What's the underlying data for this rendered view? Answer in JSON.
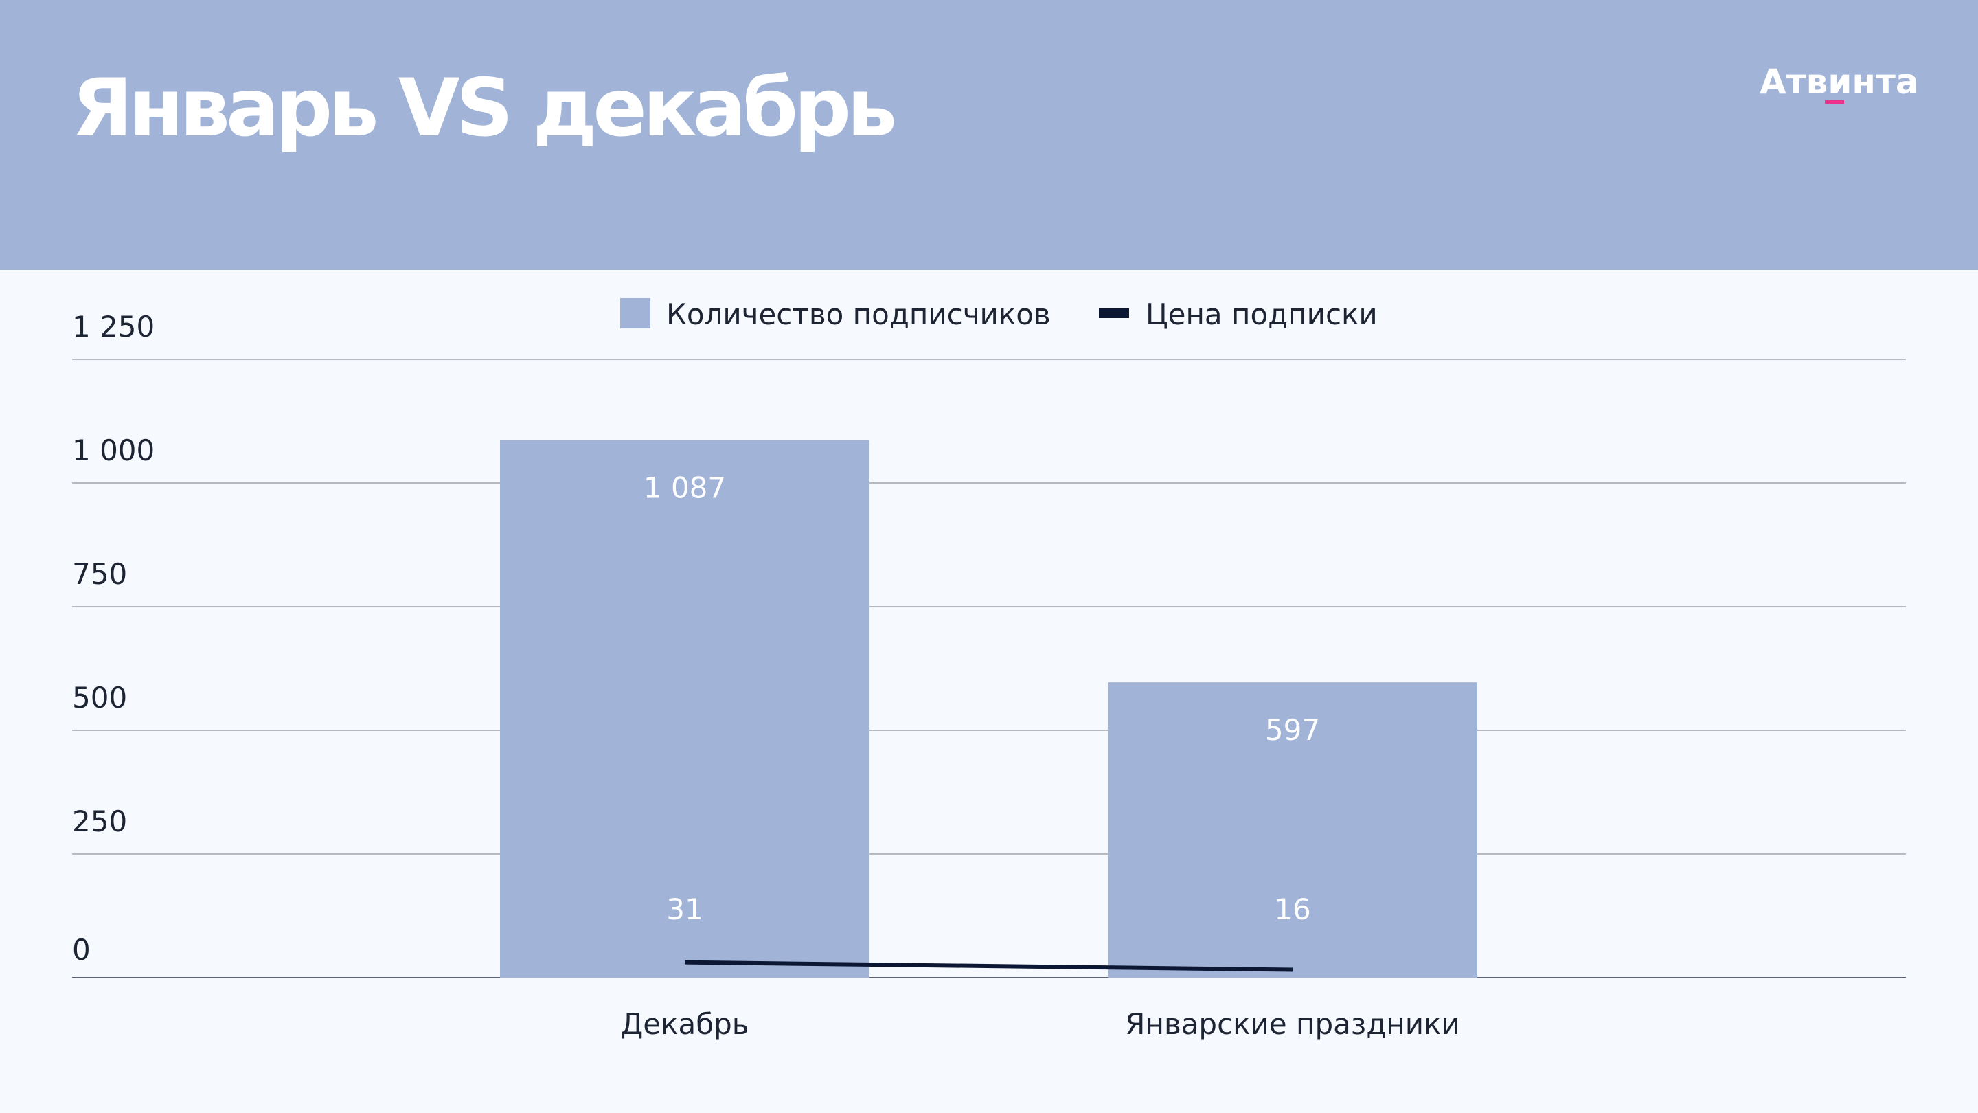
{
  "header": {
    "title": "Январь VS декабрь",
    "logo": "Атвинта"
  },
  "colors": {
    "header_bg": "#a1b3d7",
    "page_bg": "#f6f9fd",
    "bar": "#a1b3d7",
    "line": "#0c1733",
    "logo_accent": "#e8358a"
  },
  "chart_data": {
    "type": "bar",
    "categories": [
      "Декабрь",
      "Январские праздники"
    ],
    "series": [
      {
        "name": "Количество подписчиков",
        "type": "bar",
        "values": [
          1087,
          597
        ],
        "labels": [
          "1 087",
          "597"
        ]
      },
      {
        "name": "Цена подписки",
        "type": "line",
        "values": [
          31,
          16
        ],
        "labels": [
          "31",
          "16"
        ]
      }
    ],
    "ylim": [
      0,
      1250
    ],
    "yticks": [
      0,
      250,
      500,
      750,
      1000,
      1250
    ],
    "ytick_labels": [
      "0",
      "250",
      "500",
      "750",
      "1 000",
      "1 250"
    ],
    "grid": true,
    "legend_position": "top-center"
  }
}
